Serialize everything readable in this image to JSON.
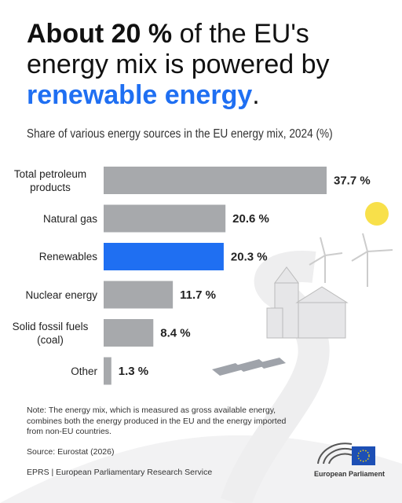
{
  "title": {
    "lines": [
      [
        "About 20 %",
        " of the EU's"
      ],
      [
        "energy mix is powered by"
      ],
      [
        "renewable energy",
        "."
      ]
    ]
  },
  "chart_data": {
    "type": "bar",
    "orientation": "horizontal",
    "subtitle": "Share of various energy sources in the EU energy mix, 2024 (%)",
    "categories": [
      "Total petroleum products",
      "Natural gas",
      "Renewables",
      "Nuclear energy",
      "Solid fossil fuels (coal)",
      "Other"
    ],
    "values": [
      37.7,
      20.6,
      20.3,
      11.7,
      8.4,
      1.3
    ],
    "value_labels": [
      "37.7 %",
      "20.6 %",
      "20.3 %",
      "11.7 %",
      "8.4 %",
      "1.3 %"
    ],
    "colors": [
      "#a7a9ac",
      "#a7a9ac",
      "#1f6ff2",
      "#a7a9ac",
      "#a7a9ac",
      "#a7a9ac"
    ]
  },
  "footer": {
    "note": "Note: The energy mix, which is measured as gross available energy, combines both the energy produced in the EU and the energy imported from non-EU countries.",
    "source": "Source: Eurostat (2026)",
    "credit": "EPRS | European Parliamentary Research Service",
    "logo": "European Parliament"
  }
}
